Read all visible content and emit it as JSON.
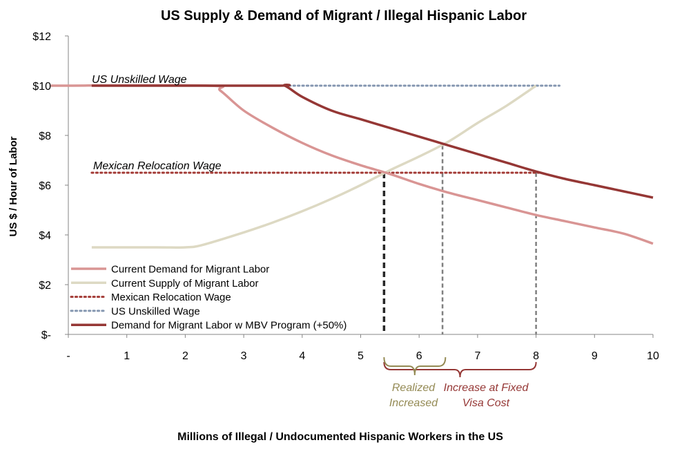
{
  "chart_data": {
    "type": "line",
    "title": "US Supply & Demand of Migrant / Illegal Hispanic Labor",
    "xlabel": "Millions of Illegal / Undocumented Hispanic Workers in the US",
    "ylabel": "US $ / Hour of Labor",
    "xlim": [
      0,
      10
    ],
    "ylim": [
      0,
      12
    ],
    "x_ticks": [
      {
        "value": 0,
        "label": "-"
      },
      {
        "value": 1,
        "label": "1"
      },
      {
        "value": 2,
        "label": "2"
      },
      {
        "value": 3,
        "label": "3"
      },
      {
        "value": 4,
        "label": "4"
      },
      {
        "value": 5,
        "label": "5"
      },
      {
        "value": 6,
        "label": "6"
      },
      {
        "value": 7,
        "label": "7"
      },
      {
        "value": 8,
        "label": "8"
      },
      {
        "value": 9,
        "label": "9"
      },
      {
        "value": 10,
        "label": "10"
      }
    ],
    "y_ticks": [
      {
        "value": 0,
        "label": "$-"
      },
      {
        "value": 2,
        "label": "$2"
      },
      {
        "value": 4,
        "label": "$4"
      },
      {
        "value": 6,
        "label": "$6"
      },
      {
        "value": 8,
        "label": "$8"
      },
      {
        "value": 10,
        "label": "$10"
      },
      {
        "value": 12,
        "label": "$12"
      }
    ],
    "grid": false,
    "legend_position": "bottom-left",
    "series": [
      {
        "name": "Current Demand for Migrant Labor",
        "color": "#d99594",
        "style": "solid",
        "x": [
          -0.3,
          2.4,
          2.6,
          3,
          3.5,
          4,
          4.5,
          5,
          5.5,
          6,
          6.5,
          7,
          7.5,
          8,
          8.5,
          9,
          9.5,
          10
        ],
        "y": [
          10,
          10,
          9.8,
          9.0,
          8.3,
          7.7,
          7.2,
          6.8,
          6.45,
          6.05,
          5.7,
          5.4,
          5.1,
          4.8,
          4.55,
          4.3,
          4.05,
          3.65
        ]
      },
      {
        "name": "Current Supply of Migrant Labor",
        "color": "#ddd9c3",
        "style": "solid",
        "x": [
          0.4,
          1.5,
          2,
          2.3,
          3,
          3.5,
          4,
          4.5,
          5,
          5.5,
          6,
          6.5,
          7,
          7.5,
          8
        ],
        "y": [
          3.5,
          3.5,
          3.5,
          3.6,
          4.1,
          4.5,
          4.95,
          5.45,
          6.0,
          6.6,
          7.15,
          7.75,
          8.5,
          9.2,
          10
        ]
      },
      {
        "name": "Mexican Relocation Wage",
        "color": "#a33a35",
        "style": "dotted",
        "x": [
          0.4,
          8.1
        ],
        "y": [
          6.5,
          6.5
        ]
      },
      {
        "name": "US Unskilled Wage",
        "color": "#8496b0",
        "style": "dotted",
        "x": [
          3.7,
          8.4
        ],
        "y": [
          10,
          10
        ]
      },
      {
        "name": "Demand for Migrant Labor w MBV Program (+50%)",
        "color": "#953735",
        "style": "solid",
        "x": [
          0.4,
          3.5,
          3.7,
          4,
          4.5,
          5,
          5.5,
          6,
          6.5,
          7,
          7.5,
          8,
          8.5,
          9,
          9.5,
          10
        ],
        "y": [
          10,
          10,
          10,
          9.55,
          9.0,
          8.65,
          8.3,
          7.95,
          7.6,
          7.25,
          6.9,
          6.55,
          6.25,
          6.0,
          5.75,
          5.5
        ]
      }
    ],
    "vertical_markers": [
      {
        "x": 5.4,
        "y_top": 6.5,
        "color": "#262626",
        "style": "bold-dashed"
      },
      {
        "x": 6.4,
        "y_top": 7.6,
        "color": "#7f7f7f",
        "style": "dashed"
      },
      {
        "x": 8.0,
        "y_top": 6.5,
        "color": "#7f7f7f",
        "style": "dashed"
      }
    ],
    "line_labels": [
      {
        "text": "US Unskilled Wage",
        "series": "US Unskilled Wage"
      },
      {
        "text": "Mexican Relocation Wage",
        "series": "Mexican Relocation Wage"
      }
    ],
    "annotations": [
      {
        "lines": [
          "Realized",
          "Increased"
        ],
        "x_from": 5.4,
        "x_to": 6.45,
        "color": "#948a54"
      },
      {
        "lines": [
          "Increase at Fixed",
          "Visa Cost"
        ],
        "x_from": 5.4,
        "x_to": 8.0,
        "color": "#953735"
      }
    ]
  }
}
